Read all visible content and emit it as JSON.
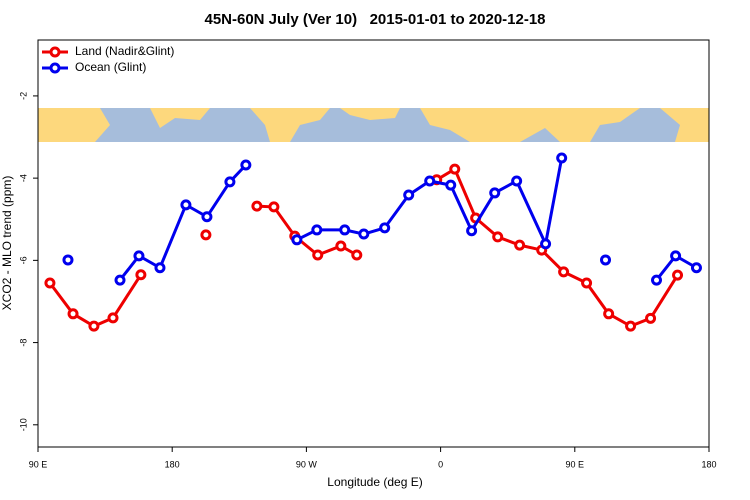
{
  "chart_data": {
    "type": "line",
    "title": "45N-60N July (Ver 10)   2015-01-01 to 2020-12-18",
    "x_label": "Longitude (deg E)",
    "y_label": "XCO2 - MLO trend (ppm)",
    "xlim": [
      90,
      540
    ],
    "ylim": [
      -10.54,
      -0.64
    ],
    "xticks": [
      {
        "value": 90,
        "label": "90 E"
      },
      180,
      {
        "value": 270,
        "label": "90 W"
      },
      {
        "value": 360,
        "label": "0"
      },
      {
        "value": 450,
        "label": "90 E"
      },
      {
        "value": 540,
        "label": "180"
      }
    ],
    "yticks": [
      -10,
      -8,
      -6,
      -4,
      -2
    ],
    "legend": "top-left",
    "series": [
      {
        "name": "Land (Nadir&Glint)",
        "color": "#ee0000",
        "x": [
          98.0,
          113.5,
          127.5,
          140.3,
          159.0,
          null,
          202.6,
          null,
          236.8,
          248.2,
          262.2,
          277.6,
          293.1,
          303.8,
          null,
          357.4,
          369.5,
          383.5,
          398.3,
          413.0,
          427.8,
          442.5,
          457.9,
          472.7,
          487.4,
          500.8,
          518.9
        ],
        "values": [
          -6.55,
          -7.3,
          -7.6,
          -7.4,
          -6.35,
          null,
          -5.38,
          null,
          -4.68,
          -4.7,
          -5.41,
          -5.87,
          -5.65,
          -5.87,
          null,
          -4.04,
          -3.78,
          -4.97,
          -5.43,
          -5.63,
          -5.75,
          -6.28,
          -6.55,
          -7.3,
          -7.6,
          -7.41,
          -6.36
        ]
      },
      {
        "name": "Ocean (Glint)",
        "color": "#0000ee",
        "x": [
          110.1,
          null,
          145.0,
          157.7,
          171.8,
          189.2,
          203.3,
          218.7,
          229.4,
          null,
          263.6,
          277.0,
          295.7,
          308.5,
          322.5,
          338.6,
          352.7,
          366.8,
          380.8,
          396.3,
          411.0,
          430.4,
          441.2,
          null,
          470.6,
          null,
          504.8,
          517.6,
          531.6
        ],
        "values": [
          -5.99,
          null,
          -6.48,
          -5.89,
          -6.18,
          -4.65,
          -4.94,
          -4.09,
          -3.68,
          null,
          -5.5,
          -5.26,
          -5.26,
          -5.36,
          -5.21,
          -4.41,
          -4.07,
          -4.17,
          -5.28,
          -4.36,
          -4.07,
          -5.6,
          -3.51,
          null,
          -5.99,
          null,
          -6.48,
          -5.89,
          -6.18
        ]
      }
    ]
  }
}
